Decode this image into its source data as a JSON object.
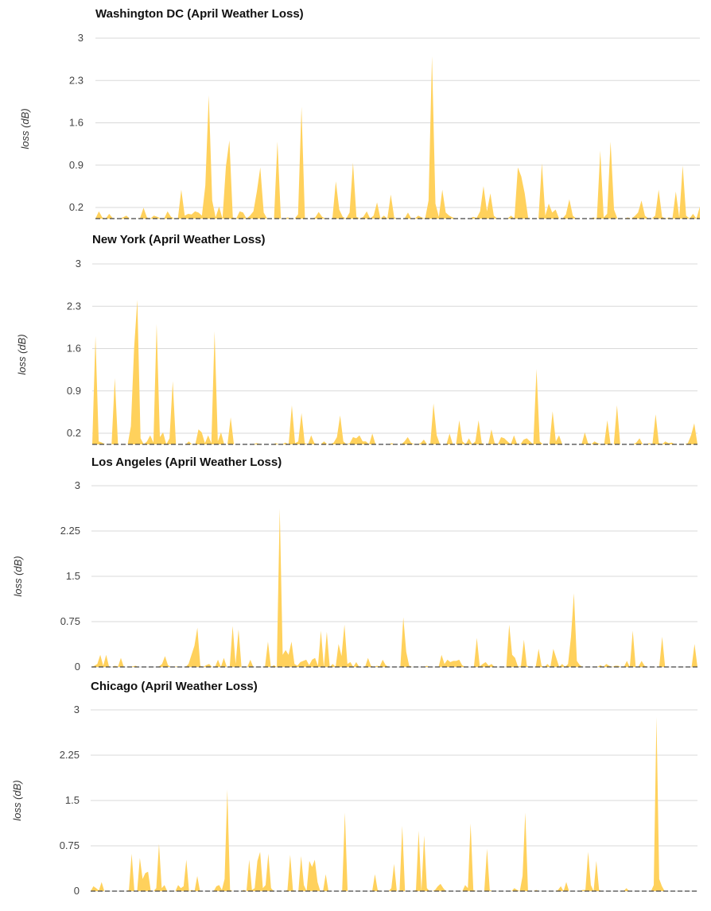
{
  "colors": {
    "area": "#ffd15c",
    "grid": "#d9d9d9",
    "baseline": "#444444"
  },
  "chart_data": [
    {
      "type": "area",
      "title": "Washington DC (April Weather Loss)",
      "ylabel": "loss (dB)",
      "yticks": [
        "3",
        "2.3",
        "1.6",
        "0.9",
        "0.2"
      ],
      "ylim": [
        0,
        3
      ],
      "grid": true,
      "values": [
        0,
        0.12,
        0.02,
        0,
        0.08,
        0.01,
        0,
        0,
        0.02,
        0.05,
        0,
        0,
        0,
        0.01,
        0.18,
        0.02,
        0,
        0.05,
        0.03,
        0,
        0,
        0.12,
        0.03,
        0,
        0,
        0.48,
        0.05,
        0.08,
        0.07,
        0.12,
        0.1,
        0.05,
        0.55,
        2.05,
        0.3,
        0.02,
        0.2,
        0,
        0.87,
        1.3,
        0.02,
        0,
        0.12,
        0.1,
        0,
        0.05,
        0.12,
        0.45,
        0.85,
        0.1,
        0,
        0,
        0,
        1.28,
        0,
        0,
        0.02,
        0,
        0,
        0.07,
        1.86,
        0,
        0,
        0,
        0.02,
        0.11,
        0.03,
        0,
        0,
        0,
        0.62,
        0.15,
        0.03,
        0,
        0.1,
        0.93,
        0.03,
        0,
        0.03,
        0.12,
        0,
        0.05,
        0.27,
        0,
        0.05,
        0,
        0.4,
        0.02,
        0,
        0,
        0,
        0.1,
        0,
        0,
        0.05,
        0.02,
        0,
        0.3,
        2.7,
        0.25,
        0.03,
        0.48,
        0.1,
        0.05,
        0.02,
        0,
        0,
        0,
        0,
        0,
        0.03,
        0.01,
        0.12,
        0.54,
        0.12,
        0.42,
        0.05,
        0,
        0,
        0,
        0,
        0.05,
        0,
        0.85,
        0.7,
        0.42,
        0.01,
        0,
        0,
        0,
        0.92,
        0.05,
        0.25,
        0.1,
        0.15,
        0,
        0,
        0.07,
        0.32,
        0.05,
        0,
        0,
        0,
        0,
        0,
        0.02,
        0,
        1.13,
        0.02,
        0.08,
        1.28,
        0.15,
        0,
        0,
        0,
        0.02,
        0,
        0.04,
        0.1,
        0.3,
        0.05,
        0,
        0,
        0.05,
        0.48,
        0.03,
        0,
        0.02,
        0,
        0.45,
        0.02,
        0.88,
        0.05,
        0,
        0.08,
        0,
        0.2
      ]
    },
    {
      "type": "area",
      "title": "New York (April Weather Loss)",
      "ylabel": "loss (dB)",
      "yticks": [
        "3",
        "2.3",
        "1.6",
        "0.9",
        "0.2"
      ],
      "ylim": [
        0,
        3
      ],
      "grid": true,
      "values": [
        0,
        1.8,
        0.05,
        0.03,
        0,
        0,
        0,
        1.1,
        0,
        0,
        0,
        0,
        0.3,
        1.6,
        2.4,
        0.1,
        0,
        0.05,
        0.15,
        0.03,
        2.0,
        0.12,
        0.2,
        0,
        0.1,
        1.05,
        0,
        0,
        0,
        0,
        0.05,
        0,
        0,
        0.25,
        0.2,
        0.02,
        0.15,
        0.02,
        1.88,
        0.05,
        0.2,
        0,
        0,
        0.45,
        0,
        0,
        0,
        0,
        0,
        0,
        0,
        0.02,
        0.01,
        0,
        0,
        0,
        0,
        0.02,
        0,
        0,
        0.03,
        0,
        0.65,
        0.02,
        0.05,
        0.52,
        0.02,
        0,
        0.15,
        0.02,
        0,
        0,
        0.05,
        0,
        0,
        0.03,
        0.12,
        0.48,
        0.05,
        0,
        0.02,
        0.12,
        0.1,
        0.15,
        0.05,
        0.05,
        0,
        0.18,
        0,
        0,
        0,
        0,
        0,
        0.02,
        0,
        0,
        0,
        0.05,
        0.12,
        0.03,
        0,
        0,
        0.02,
        0.08,
        0,
        0,
        0.68,
        0.15,
        0,
        0,
        0,
        0.18,
        0,
        0,
        0.4,
        0.05,
        0,
        0.1,
        0,
        0.05,
        0.4,
        0.02,
        0,
        0,
        0.25,
        0.02,
        0,
        0.12,
        0.1,
        0.05,
        0,
        0.15,
        0,
        0,
        0.08,
        0.1,
        0.05,
        0,
        1.25,
        0.05,
        0,
        0,
        0,
        0.55,
        0.05,
        0.15,
        0,
        0,
        0,
        0,
        0,
        0,
        0,
        0.2,
        0.02,
        0,
        0.05,
        0.02,
        0,
        0,
        0.4,
        0,
        0,
        0.65,
        0,
        0,
        0,
        0,
        0,
        0.03,
        0.1,
        0,
        0,
        0.02,
        0,
        0.5,
        0.02,
        0,
        0.05,
        0.02,
        0.03,
        0,
        0,
        0,
        0,
        0.02,
        0.15,
        0.35,
        0
      ]
    },
    {
      "type": "area",
      "title": "Los Angeles (April Weather Loss)",
      "ylabel": "loss (dB)",
      "yticks": [
        "3",
        "2.25",
        "1.5",
        "0.75",
        "0"
      ],
      "ylim": [
        0,
        3
      ],
      "grid": true,
      "values": [
        0,
        0.02,
        0.05,
        0.2,
        0.02,
        0.2,
        0,
        0,
        0.02,
        0,
        0.15,
        0,
        0,
        0,
        0.01,
        0.02,
        0,
        0,
        0,
        0,
        0,
        0,
        0,
        0.01,
        0.05,
        0.18,
        0.03,
        0,
        0,
        0.01,
        0,
        0,
        0,
        0.05,
        0.2,
        0.35,
        0.65,
        0.02,
        0,
        0.03,
        0.05,
        0,
        0,
        0.12,
        0,
        0.15,
        0,
        0,
        0.68,
        0.05,
        0.62,
        0,
        0,
        0,
        0.12,
        0,
        0,
        0,
        0,
        0.01,
        0.42,
        0,
        0.03,
        0,
        2.62,
        0.2,
        0.28,
        0.2,
        0.42,
        0.05,
        0.02,
        0.08,
        0.1,
        0.12,
        0.03,
        0.12,
        0.15,
        0.02,
        0.6,
        0,
        0.58,
        0,
        0.05,
        0,
        0.38,
        0.18,
        0.7,
        0.05,
        0.08,
        0,
        0.08,
        0,
        0,
        0,
        0.15,
        0.02,
        0,
        0.02,
        0.01,
        0.12,
        0.03,
        0,
        0,
        0,
        0,
        0,
        0.82,
        0.25,
        0.02,
        0,
        0,
        0,
        0,
        0,
        0.02,
        0,
        0,
        0,
        0,
        0.2,
        0.05,
        0.12,
        0.08,
        0.1,
        0.1,
        0.12,
        0.03,
        0,
        0,
        0,
        0,
        0.48,
        0.01,
        0.05,
        0.08,
        0.02,
        0.05,
        0,
        0,
        0,
        0,
        0,
        0.7,
        0.2,
        0.15,
        0,
        0.02,
        0.45,
        0.02,
        0,
        0,
        0,
        0.3,
        0.02,
        0,
        0.05,
        0,
        0.3,
        0.15,
        0,
        0.05,
        0,
        0.05,
        0.5,
        1.22,
        0.1,
        0.03,
        0,
        0,
        0,
        0,
        0,
        0,
        0.03,
        0,
        0.05,
        0.02,
        0,
        0.02,
        0.02,
        0,
        0,
        0.1,
        0,
        0.6,
        0,
        0.01,
        0.1,
        0.02,
        0,
        0,
        0,
        0,
        0,
        0.5,
        0,
        0,
        0,
        0,
        0,
        0,
        0,
        0,
        0,
        0,
        0.38,
        0
      ]
    },
    {
      "type": "area",
      "title": "Chicago (April Weather Loss)",
      "ylabel": "loss (dB)",
      "yticks": [
        "3",
        "2.25",
        "1.5",
        "0.75",
        "0"
      ],
      "ylim": [
        0,
        3
      ],
      "grid": true,
      "values": [
        0,
        0.08,
        0.05,
        0.01,
        0.15,
        0,
        0,
        0,
        0,
        0,
        0,
        0,
        0,
        0,
        0.02,
        0.62,
        0,
        0,
        0.55,
        0.2,
        0.3,
        0.32,
        0,
        0,
        0.05,
        0.78,
        0.05,
        0.1,
        0,
        0,
        0,
        0,
        0.1,
        0.05,
        0.08,
        0.52,
        0,
        0.02,
        0,
        0.25,
        0,
        0,
        0,
        0,
        0,
        0,
        0.08,
        0.1,
        0.02,
        0.2,
        1.68,
        0.02,
        0,
        0,
        0,
        0,
        0.02,
        0,
        0.52,
        0.02,
        0.05,
        0.5,
        0.65,
        0.05,
        0.1,
        0.62,
        0.05,
        0,
        0,
        0,
        0,
        0,
        0.02,
        0.6,
        0.02,
        0,
        0,
        0.58,
        0.1,
        0,
        0.5,
        0.4,
        0.52,
        0.15,
        0,
        0,
        0.28,
        0,
        0,
        0,
        0,
        0,
        0,
        1.3,
        0,
        0,
        0,
        0,
        0,
        0,
        0,
        0,
        0,
        0,
        0.28,
        0.02,
        0,
        0,
        0,
        0,
        0.05,
        0.45,
        0,
        0,
        1.08,
        0,
        0,
        0,
        0,
        0.02,
        1.0,
        0,
        0.92,
        0.05,
        0,
        0,
        0.02,
        0.08,
        0.12,
        0.05,
        0,
        0,
        0,
        0,
        0,
        0,
        0,
        0.1,
        0.05,
        1.12,
        0.02,
        0,
        0,
        0,
        0,
        0.7,
        0.02,
        0,
        0,
        0,
        0,
        0,
        0,
        0,
        0,
        0.05,
        0.02,
        0,
        0.25,
        1.3,
        0,
        0,
        0,
        0.02,
        0,
        0,
        0,
        0,
        0,
        0,
        0,
        0.02,
        0.08,
        0,
        0.15,
        0,
        0,
        0,
        0,
        0,
        0.02,
        0.02,
        0.65,
        0.1,
        0,
        0.5,
        0.02,
        0,
        0,
        0,
        0,
        0,
        0,
        0,
        0,
        0,
        0.05,
        0,
        0,
        0,
        0,
        0,
        0,
        0,
        0,
        0,
        0.1,
        2.88,
        0.2,
        0.08,
        0,
        0,
        0,
        0,
        0,
        0,
        0,
        0,
        0,
        0,
        0,
        0,
        0
      ]
    }
  ]
}
